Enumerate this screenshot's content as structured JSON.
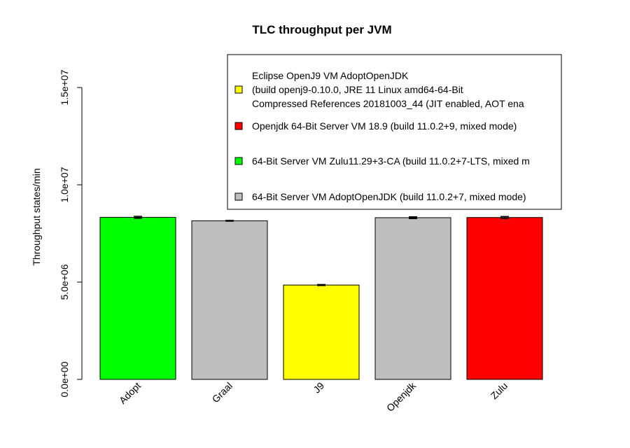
{
  "chart_data": {
    "type": "bar",
    "title": "TLC throughput per JVM",
    "xlabel": "",
    "ylabel": "Throughput states/min",
    "ylim": [
      0,
      15000000
    ],
    "yticks": [
      0,
      5000000,
      10000000,
      15000000
    ],
    "ytick_labels": [
      "0.0e+00",
      "5.0e+06",
      "1.0e+07",
      "1.5e+07"
    ],
    "categories": [
      "Adopt",
      "Graal",
      "J9",
      "Openjdk",
      "Zulu"
    ],
    "values": [
      8330000,
      8150000,
      4850000,
      8310000,
      8320000
    ],
    "errors": [
      50000,
      20000,
      25000,
      45000,
      50000
    ],
    "bar_colors": [
      "#00ff00",
      "#bebebe",
      "#ffff00",
      "#bebebe",
      "#ff0000"
    ],
    "grid": false,
    "legend_position": "top-right",
    "legend": [
      {
        "lines": [
          "Eclipse OpenJ9 VM AdoptOpenJDK",
          "(build openj9-0.10.0, JRE 11 Linux amd64-64-Bit",
          "Compressed References 20181003_44 (JIT enabled, AOT ena"
        ],
        "color": "#ffff00"
      },
      {
        "lines": [
          "Openjdk 64-Bit Server VM 18.9 (build 11.0.2+9, mixed mode)"
        ],
        "color": "#ff0000"
      },
      {
        "lines": [
          "64-Bit Server VM Zulu11.29+3-CA (build 11.0.2+7-LTS, mixed m"
        ],
        "color": "#00ff00"
      },
      {
        "lines": [
          "64-Bit Server VM AdoptOpenJDK (build 11.0.2+7, mixed mode)"
        ],
        "color": "#bebebe"
      }
    ]
  }
}
